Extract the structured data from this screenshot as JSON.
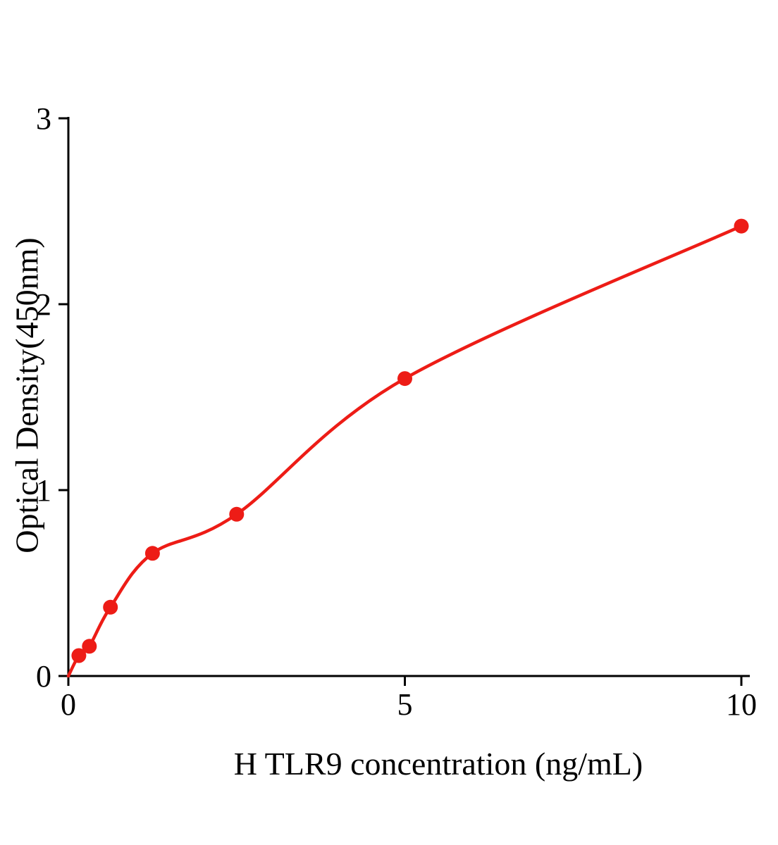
{
  "chart_data": {
    "type": "scatter",
    "title": "",
    "xlabel": "H TLR9 concentration (ng/mL)",
    "ylabel": "Optical Density(450nm)",
    "x": [
      0.156,
      0.3125,
      0.625,
      1.25,
      2.5,
      5,
      10
    ],
    "y": [
      0.11,
      0.16,
      0.37,
      0.66,
      0.87,
      1.6,
      2.42
    ],
    "has_fit_curve": true,
    "fit_curve_start": [
      0,
      0
    ],
    "xlim": [
      0,
      10.6
    ],
    "ylim": [
      0,
      3
    ],
    "xticks": [
      0,
      5,
      10
    ],
    "yticks": [
      0,
      1,
      2,
      3
    ],
    "xtick_labels": [
      "0",
      "5",
      "10"
    ],
    "ytick_labels": [
      "0",
      "1",
      "2",
      "3"
    ],
    "point_color": "#ED1C16",
    "line_color": "#ED1C16",
    "axis_color": "#000000",
    "grid": false,
    "legend": null
  }
}
